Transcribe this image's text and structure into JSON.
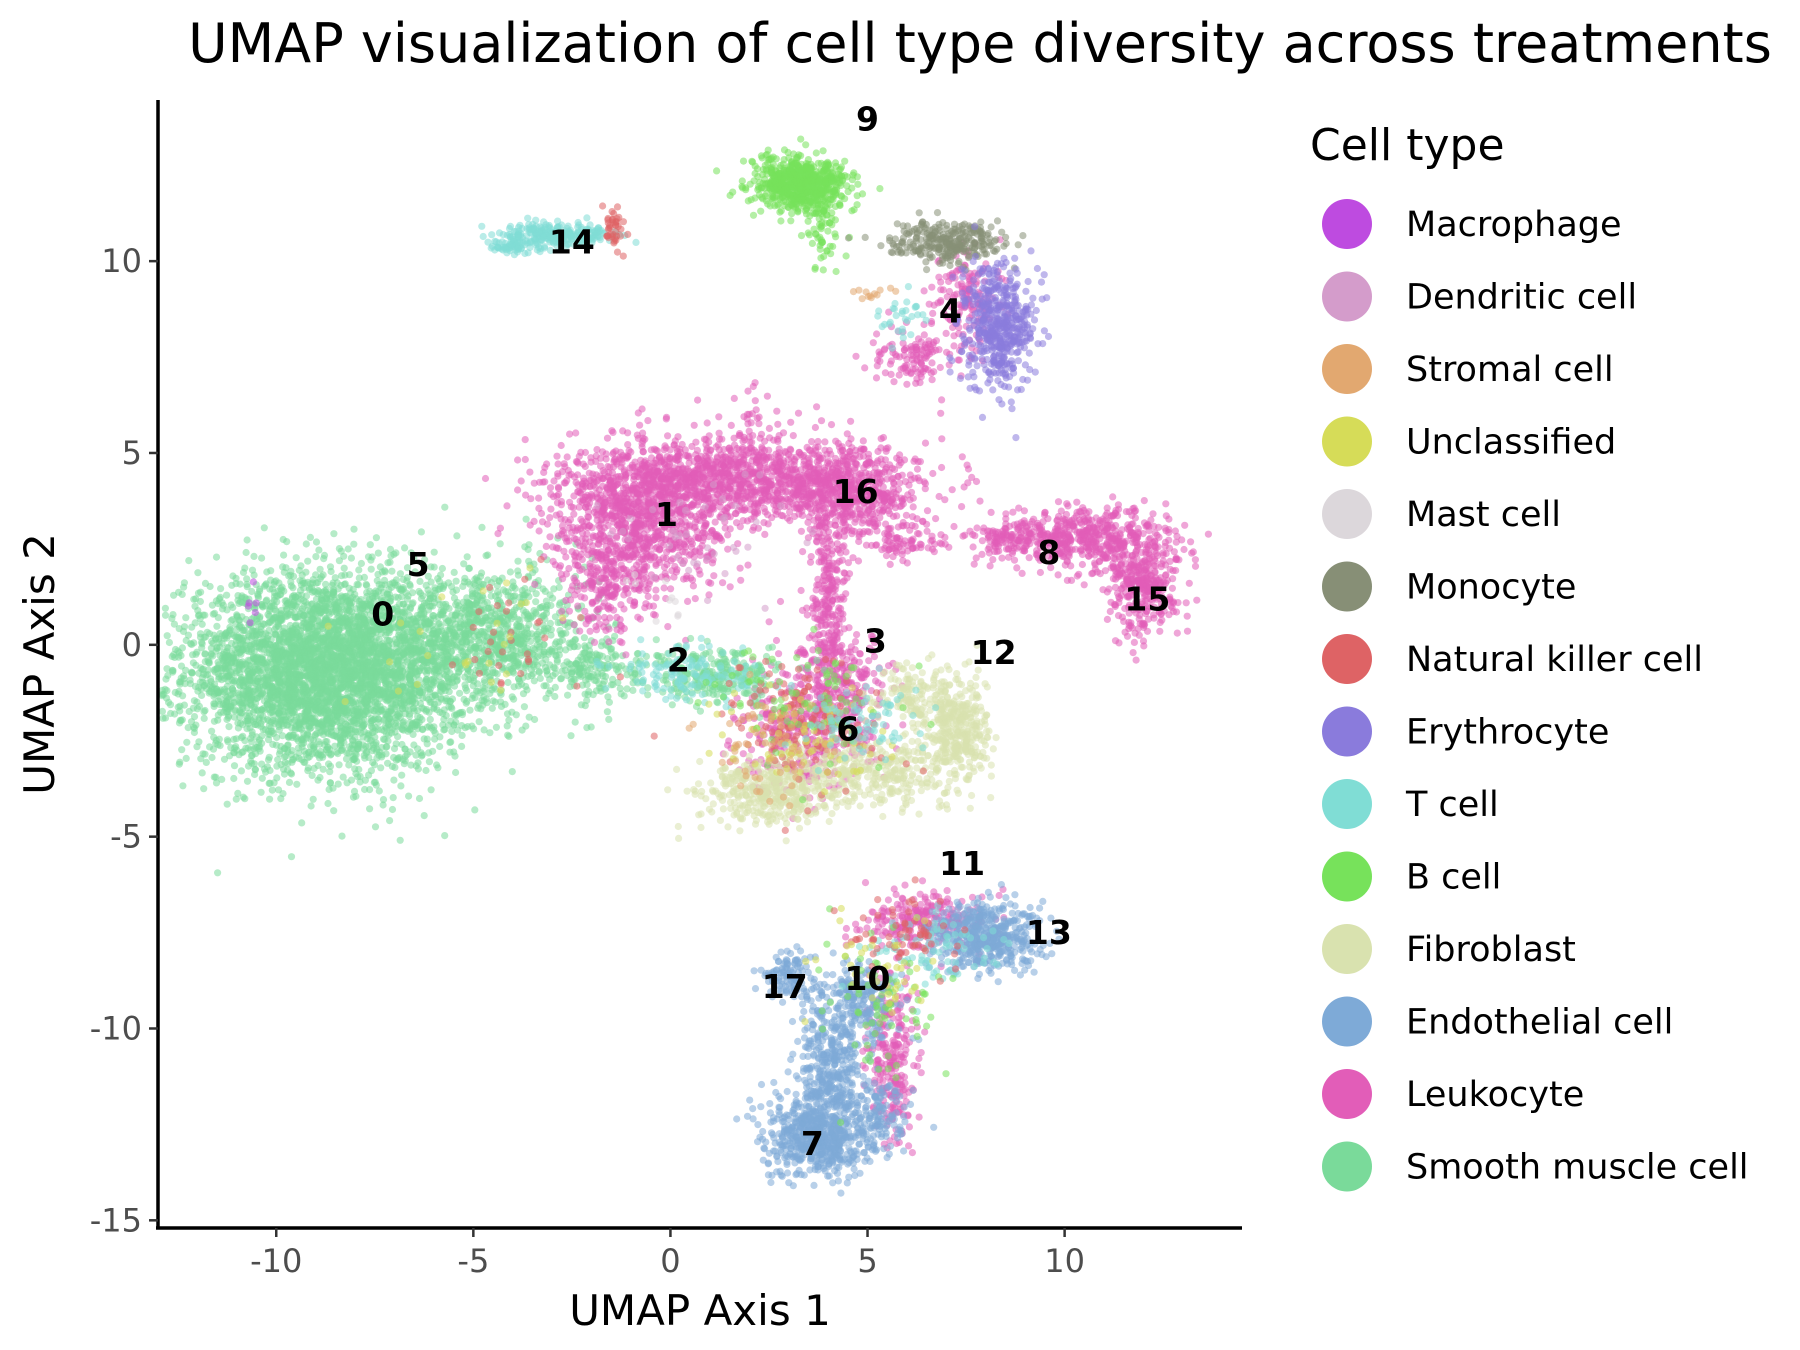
{
  "chart_data": {
    "type": "scatter",
    "title": "UMAP visualization of cell type diversity across treatments",
    "xlabel": "UMAP Axis 1",
    "ylabel": "UMAP Axis 2",
    "xlim": [
      -13,
      14.5
    ],
    "ylim": [
      -15.2,
      14.2
    ],
    "xticks": [
      -10,
      -5,
      0,
      5,
      10
    ],
    "yticks": [
      10,
      5,
      0,
      -5,
      -10,
      -15
    ],
    "xtick_labels": [
      "-10",
      "-5",
      "0",
      "5",
      "10"
    ],
    "ytick_labels": [
      "10",
      "5",
      "0",
      "-5",
      "-10",
      "-15"
    ],
    "grid": false,
    "legend": {
      "title": "Cell type",
      "placement": "right",
      "entries": [
        {
          "name": "Macrophage",
          "color": "#BE4BE0"
        },
        {
          "name": "Dendritic cell",
          "color": "#D49CCB"
        },
        {
          "name": "Stromal cell",
          "color": "#E2A870"
        },
        {
          "name": "Unclassified",
          "color": "#D6DC58"
        },
        {
          "name": "Mast cell",
          "color": "#DCD7DB"
        },
        {
          "name": "Monocyte",
          "color": "#878F76"
        },
        {
          "name": "Natural killer cell",
          "color": "#DE6365"
        },
        {
          "name": "Erythrocyte",
          "color": "#8A7BDC"
        },
        {
          "name": "T cell",
          "color": "#80DDD5"
        },
        {
          "name": "B cell",
          "color": "#77E25B"
        },
        {
          "name": "Fibroblast",
          "color": "#D9E2AF"
        },
        {
          "name": "Endothelial cell",
          "color": "#7EAAD7"
        },
        {
          "name": "Leukocyte",
          "color": "#E25DB8"
        },
        {
          "name": "Smooth muscle cell",
          "color": "#7ADA9A"
        }
      ]
    },
    "cluster_labels": [
      {
        "label": "0",
        "x": -7.3,
        "y": 0.5
      },
      {
        "label": "1",
        "x": -0.1,
        "y": 3.1
      },
      {
        "label": "2",
        "x": 0.2,
        "y": -0.7
      },
      {
        "label": "3",
        "x": 5.2,
        "y": -0.2
      },
      {
        "label": "4",
        "x": 7.1,
        "y": 8.4
      },
      {
        "label": "5",
        "x": -6.4,
        "y": 1.8
      },
      {
        "label": "6",
        "x": 4.5,
        "y": -2.5
      },
      {
        "label": "7",
        "x": 3.6,
        "y": -13.3
      },
      {
        "label": "8",
        "x": 9.6,
        "y": 2.1
      },
      {
        "label": "9",
        "x": 5.0,
        "y": 13.4
      },
      {
        "label": "10",
        "x": 5.0,
        "y": -9.0
      },
      {
        "label": "11",
        "x": 7.4,
        "y": -6.0
      },
      {
        "label": "12",
        "x": 8.2,
        "y": -0.5
      },
      {
        "label": "13",
        "x": 9.6,
        "y": -7.8
      },
      {
        "label": "14",
        "x": -2.5,
        "y": 10.2
      },
      {
        "label": "15",
        "x": 12.1,
        "y": 0.9
      },
      {
        "label": "16",
        "x": 4.7,
        "y": 3.7
      },
      {
        "label": "17",
        "x": 2.9,
        "y": -9.2
      }
    ],
    "clusters": [
      {
        "cell_type": "Smooth muscle cell",
        "cx": -8.7,
        "cy": -0.7,
        "sx": 1.8,
        "sy": 1.25,
        "n": 4200
      },
      {
        "cell_type": "Smooth muscle cell",
        "cx": -4.6,
        "cy": 0.3,
        "sx": 1.3,
        "sy": 0.9,
        "n": 900
      },
      {
        "cell_type": "Smooth muscle cell",
        "cx": -2.0,
        "cy": -0.6,
        "sx": 0.6,
        "sy": 0.4,
        "n": 150
      },
      {
        "cell_type": "Leukocyte",
        "cx": -0.8,
        "cy": 3.2,
        "sx": 1.2,
        "sy": 0.9,
        "n": 900
      },
      {
        "cell_type": "Leukocyte",
        "cx": 1.5,
        "cy": 4.3,
        "sx": 1.9,
        "sy": 0.55,
        "n": 1200
      },
      {
        "cell_type": "Leukocyte",
        "cx": 4.7,
        "cy": 4.0,
        "sx": 0.8,
        "sy": 0.6,
        "n": 500
      },
      {
        "cell_type": "Leukocyte",
        "cx": -1.6,
        "cy": 1.5,
        "sx": 0.6,
        "sy": 0.6,
        "n": 200
      },
      {
        "cell_type": "Leukocyte",
        "cx": 4.0,
        "cy": 1.2,
        "sx": 0.25,
        "sy": 1.3,
        "n": 250
      },
      {
        "cell_type": "Leukocyte",
        "cx": 4.3,
        "cy": -1.1,
        "sx": 0.7,
        "sy": 0.7,
        "n": 300
      },
      {
        "cell_type": "Leukocyte",
        "cx": 3.4,
        "cy": -2.4,
        "sx": 0.9,
        "sy": 0.7,
        "n": 300
      },
      {
        "cell_type": "Leukocyte",
        "cx": 6.0,
        "cy": 2.7,
        "sx": 0.5,
        "sy": 0.3,
        "n": 80
      },
      {
        "cell_type": "Leukocyte",
        "cx": 10.5,
        "cy": 2.8,
        "sx": 1.1,
        "sy": 0.4,
        "n": 500
      },
      {
        "cell_type": "Leukocyte",
        "cx": 12.0,
        "cy": 1.6,
        "sx": 0.45,
        "sy": 0.65,
        "n": 350
      },
      {
        "cell_type": "Leukocyte",
        "cx": 8.6,
        "cy": 2.8,
        "sx": 0.45,
        "sy": 0.2,
        "n": 90
      },
      {
        "cell_type": "Leukocyte",
        "cx": 6.2,
        "cy": 7.5,
        "sx": 0.5,
        "sy": 0.4,
        "n": 120
      },
      {
        "cell_type": "Leukocyte",
        "cx": 7.5,
        "cy": 9.0,
        "sx": 0.4,
        "sy": 0.7,
        "n": 150
      },
      {
        "cell_type": "Leukocyte",
        "cx": 6.5,
        "cy": -7.2,
        "sx": 0.8,
        "sy": 0.35,
        "n": 250
      },
      {
        "cell_type": "Leukocyte",
        "cx": 5.6,
        "cy": -10.8,
        "sx": 0.3,
        "sy": 1.1,
        "n": 250
      },
      {
        "cell_type": "Leukocyte",
        "cx": 2.1,
        "cy": 5.5,
        "sx": 0.3,
        "sy": 0.6,
        "n": 40
      },
      {
        "cell_type": "Smooth muscle cell",
        "cx": 1.2,
        "cy": -0.8,
        "sx": 0.9,
        "sy": 0.35,
        "n": 250
      },
      {
        "cell_type": "T cell",
        "cx": 0.5,
        "cy": -0.8,
        "sx": 1.0,
        "sy": 0.35,
        "n": 130
      },
      {
        "cell_type": "Fibroblast",
        "cx": 2.5,
        "cy": -3.8,
        "sx": 0.9,
        "sy": 0.45,
        "n": 400
      },
      {
        "cell_type": "Fibroblast",
        "cx": 5.3,
        "cy": -3.3,
        "sx": 1.0,
        "sy": 0.45,
        "n": 300
      },
      {
        "cell_type": "Fibroblast",
        "cx": 7.3,
        "cy": -2.4,
        "sx": 0.4,
        "sy": 0.6,
        "n": 300
      },
      {
        "cell_type": "Fibroblast",
        "cx": 6.3,
        "cy": -1.4,
        "sx": 0.7,
        "sy": 0.45,
        "n": 200
      },
      {
        "cell_type": "Natural killer cell",
        "cx": 3.3,
        "cy": -2.1,
        "sx": 1.0,
        "sy": 0.8,
        "n": 140
      },
      {
        "cell_type": "Unclassified",
        "cx": 3.4,
        "cy": -2.4,
        "sx": 1.0,
        "sy": 0.7,
        "n": 80
      },
      {
        "cell_type": "B cell",
        "cx": 3.7,
        "cy": -1.6,
        "sx": 1.2,
        "sy": 0.8,
        "n": 80
      },
      {
        "cell_type": "Stromal cell",
        "cx": 2.6,
        "cy": -2.8,
        "sx": 0.8,
        "sy": 0.7,
        "n": 60
      },
      {
        "cell_type": "T cell",
        "cx": 4.9,
        "cy": -2.0,
        "sx": 0.8,
        "sy": 0.5,
        "n": 80
      },
      {
        "cell_type": "B cell",
        "cx": 3.3,
        "cy": 12.0,
        "sx": 0.6,
        "sy": 0.35,
        "n": 700
      },
      {
        "cell_type": "B cell",
        "cx": 3.9,
        "cy": 10.8,
        "sx": 0.25,
        "sy": 0.5,
        "n": 60
      },
      {
        "cell_type": "T cell",
        "cx": -2.8,
        "cy": 10.7,
        "sx": 0.7,
        "sy": 0.15,
        "n": 240
      },
      {
        "cell_type": "T cell",
        "cx": -4.0,
        "cy": 10.4,
        "sx": 0.35,
        "sy": 0.1,
        "n": 60
      },
      {
        "cell_type": "Natural killer cell",
        "cx": -1.4,
        "cy": 10.8,
        "sx": 0.2,
        "sy": 0.25,
        "n": 40
      },
      {
        "cell_type": "Monocyte",
        "cx": 7.0,
        "cy": 10.5,
        "sx": 0.7,
        "sy": 0.25,
        "n": 280
      },
      {
        "cell_type": "Erythrocyte",
        "cx": 8.3,
        "cy": 8.3,
        "sx": 0.45,
        "sy": 0.8,
        "n": 500
      },
      {
        "cell_type": "T cell",
        "cx": 5.9,
        "cy": 8.5,
        "sx": 0.3,
        "sy": 0.3,
        "n": 30
      },
      {
        "cell_type": "Endothelial cell",
        "cx": 8.0,
        "cy": -7.6,
        "sx": 0.7,
        "sy": 0.45,
        "n": 500
      },
      {
        "cell_type": "Endothelial cell",
        "cx": 3.8,
        "cy": -12.8,
        "sx": 0.7,
        "sy": 0.5,
        "n": 600
      },
      {
        "cell_type": "Endothelial cell",
        "cx": 4.0,
        "cy": -11.0,
        "sx": 0.4,
        "sy": 0.9,
        "n": 350
      },
      {
        "cell_type": "Endothelial cell",
        "cx": 3.1,
        "cy": -8.6,
        "sx": 0.35,
        "sy": 0.3,
        "n": 120
      },
      {
        "cell_type": "Endothelial cell",
        "cx": 4.7,
        "cy": -9.3,
        "sx": 0.5,
        "sy": 0.5,
        "n": 200
      },
      {
        "cell_type": "Endothelial cell",
        "cx": 5.2,
        "cy": -12.2,
        "sx": 0.35,
        "sy": 0.6,
        "n": 120
      },
      {
        "cell_type": "T cell",
        "cx": 6.5,
        "cy": -8.0,
        "sx": 0.9,
        "sy": 0.5,
        "n": 80
      },
      {
        "cell_type": "B cell",
        "cx": 5.3,
        "cy": -9.5,
        "sx": 0.8,
        "sy": 1.0,
        "n": 70
      },
      {
        "cell_type": "Natural killer cell",
        "cx": 6.0,
        "cy": -7.5,
        "sx": 0.8,
        "sy": 0.5,
        "n": 60
      },
      {
        "cell_type": "Unclassified",
        "cx": 5.5,
        "cy": -8.5,
        "sx": 0.8,
        "sy": 0.8,
        "n": 40
      },
      {
        "cell_type": "Natural killer cell",
        "cx": -4.0,
        "cy": 0.4,
        "sx": 1.0,
        "sy": 0.8,
        "n": 30
      },
      {
        "cell_type": "Unclassified",
        "cx": -5.0,
        "cy": 0.5,
        "sx": 1.2,
        "sy": 0.9,
        "n": 25
      },
      {
        "cell_type": "Macrophage",
        "cx": -10.6,
        "cy": 1.0,
        "sx": 0.1,
        "sy": 0.3,
        "n": 6
      },
      {
        "cell_type": "Mast cell",
        "cx": -0.5,
        "cy": 1.2,
        "sx": 0.5,
        "sy": 0.5,
        "n": 10
      },
      {
        "cell_type": "Dendritic cell",
        "cx": 0.5,
        "cy": 3.0,
        "sx": 1.5,
        "sy": 0.8,
        "n": 40
      },
      {
        "cell_type": "Stromal cell",
        "cx": 5.0,
        "cy": 9.2,
        "sx": 0.3,
        "sy": 0.1,
        "n": 12
      }
    ]
  }
}
